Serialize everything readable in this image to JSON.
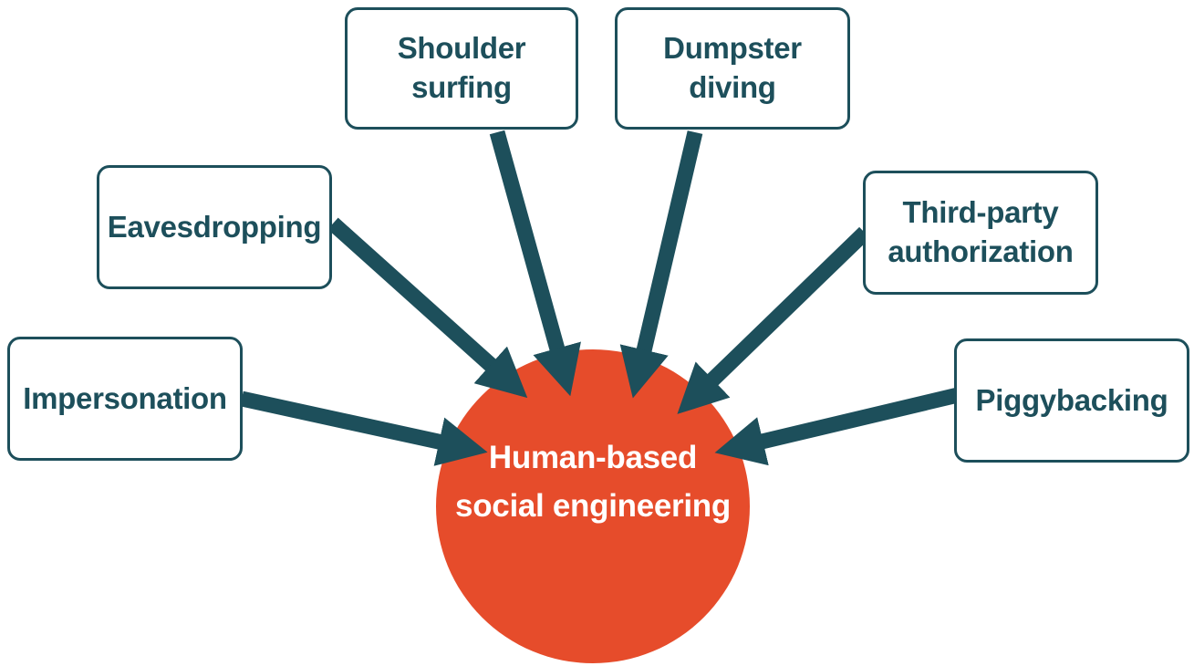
{
  "diagram": {
    "hub": {
      "label": "Human-based social engineering"
    },
    "techniques": [
      {
        "id": "shoulder",
        "line1": "Shoulder",
        "line2": "surfing"
      },
      {
        "id": "dumpster",
        "line1": "Dumpster",
        "line2": "diving"
      },
      {
        "id": "eavesdropping",
        "line1": "Eavesdropping",
        "line2": ""
      },
      {
        "id": "thirdparty",
        "line1": "Third-party",
        "line2": "authorization"
      },
      {
        "id": "impersonation",
        "line1": "Impersonation",
        "line2": ""
      },
      {
        "id": "piggybacking",
        "line1": "Piggybacking",
        "line2": ""
      }
    ]
  },
  "colors": {
    "box_border": "#1d4f5b",
    "box_text": "#1d4f5b",
    "arrow": "#1d4f5b",
    "hub_fill": "#e64c2b",
    "hub_text": "#ffffff"
  }
}
